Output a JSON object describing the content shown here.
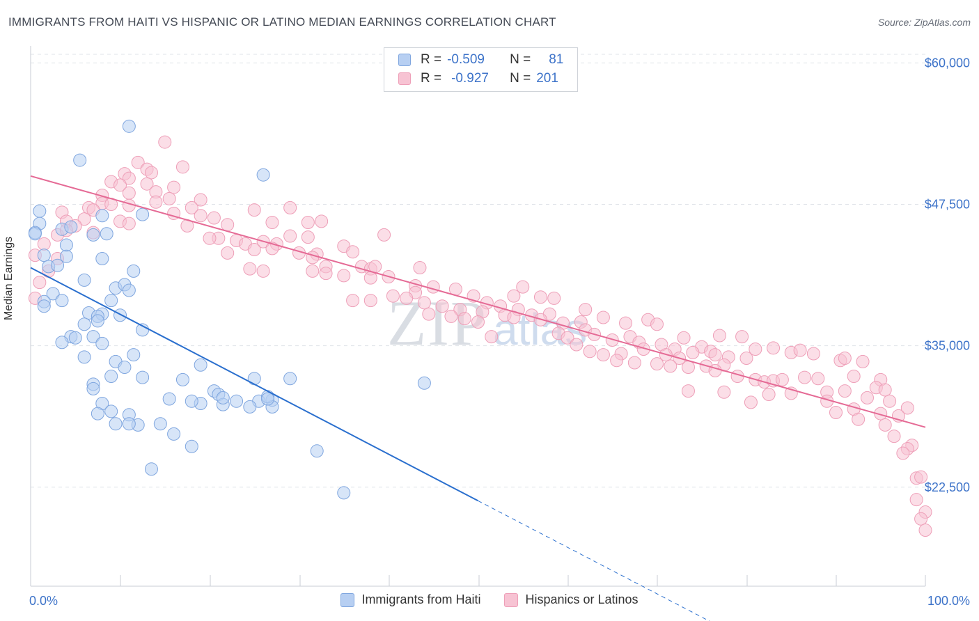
{
  "title": "IMMIGRANTS FROM HAITI VS HISPANIC OR LATINO MEDIAN EARNINGS CORRELATION CHART",
  "source": "Source: ZipAtlas.com",
  "watermark": "ZIPatlas",
  "colors": {
    "blue_fill": "#b7cff2",
    "blue_stroke": "#7fa6df",
    "blue_line": "#2a6fce",
    "pink_fill": "#f7c3d3",
    "pink_stroke": "#ee9fb8",
    "pink_line": "#e56a95",
    "value_text": "#3d73c9",
    "grid": "#dfe3e8"
  },
  "legend_top": {
    "rows": [
      {
        "r_label": "R =",
        "r_value": "-0.509",
        "n_label": "N =",
        "n_value": "81"
      },
      {
        "r_label": "R =",
        "r_value": "-0.927",
        "n_label": "N =",
        "n_value": "201"
      }
    ]
  },
  "bottom_legend": [
    "Immigrants from Haiti",
    "Hispanics or Latinos"
  ],
  "chart_data": {
    "type": "scatter",
    "xlabel": "",
    "ylabel": "Median Earnings",
    "xlim": [
      0,
      100
    ],
    "ylim": [
      13750,
      61250
    ],
    "x_ticks": [
      "0.0%",
      "100.0%"
    ],
    "y_ticks": [
      {
        "value": 22500,
        "label": "$22,500"
      },
      {
        "value": 35000,
        "label": "$35,000"
      },
      {
        "value": 47500,
        "label": "$47,500"
      },
      {
        "value": 60000,
        "label": "$60,000"
      }
    ],
    "grid": true,
    "legend_position": "top-center",
    "series": [
      {
        "name": "Immigrants from Haiti",
        "trend": {
          "x0": 0,
          "y0": 41900,
          "x1": 50,
          "y1": 21300,
          "dash_x1": 77,
          "dash_y1": 10200
        },
        "points": [
          [
            11,
            54400
          ],
          [
            5.5,
            51400
          ],
          [
            26,
            50100
          ],
          [
            1,
            46900
          ],
          [
            8,
            46500
          ],
          [
            12.5,
            46600
          ],
          [
            1,
            45800
          ],
          [
            0.5,
            45000
          ],
          [
            0.5,
            44900
          ],
          [
            3.5,
            45300
          ],
          [
            4.5,
            45500
          ],
          [
            7,
            44800
          ],
          [
            8.5,
            44900
          ],
          [
            4,
            43900
          ],
          [
            1.5,
            43000
          ],
          [
            4,
            42900
          ],
          [
            8,
            42700
          ],
          [
            2,
            42000
          ],
          [
            3,
            42100
          ],
          [
            11.5,
            41600
          ],
          [
            6,
            40800
          ],
          [
            9.5,
            40100
          ],
          [
            10.5,
            40400
          ],
          [
            11,
            39900
          ],
          [
            2.5,
            39600
          ],
          [
            3.5,
            39000
          ],
          [
            1.5,
            38900
          ],
          [
            9,
            39000
          ],
          [
            1.5,
            38500
          ],
          [
            6.5,
            37900
          ],
          [
            8,
            37800
          ],
          [
            7.5,
            37600
          ],
          [
            10,
            37700
          ],
          [
            7.5,
            37200
          ],
          [
            6,
            36900
          ],
          [
            12.5,
            36400
          ],
          [
            4.5,
            35800
          ],
          [
            7,
            35800
          ],
          [
            5,
            35700
          ],
          [
            3.5,
            35300
          ],
          [
            8,
            35200
          ],
          [
            6,
            34000
          ],
          [
            11.5,
            34200
          ],
          [
            9.5,
            33600
          ],
          [
            10.5,
            33100
          ],
          [
            19,
            33300
          ],
          [
            9,
            32300
          ],
          [
            12.5,
            32200
          ],
          [
            17,
            32000
          ],
          [
            25,
            32100
          ],
          [
            29,
            32100
          ],
          [
            7,
            31600
          ],
          [
            7,
            31200
          ],
          [
            20.5,
            31000
          ],
          [
            21,
            30700
          ],
          [
            15.5,
            30300
          ],
          [
            23,
            30100
          ],
          [
            8,
            29900
          ],
          [
            19,
            29900
          ],
          [
            25.5,
            30100
          ],
          [
            27,
            30200
          ],
          [
            21.5,
            29800
          ],
          [
            27,
            29600
          ],
          [
            7.5,
            29000
          ],
          [
            9,
            29200
          ],
          [
            11,
            28900
          ],
          [
            14.5,
            28100
          ],
          [
            12,
            28000
          ],
          [
            9.5,
            28100
          ],
          [
            11,
            28100
          ],
          [
            16,
            27200
          ],
          [
            18,
            26100
          ],
          [
            32,
            25700
          ],
          [
            13.5,
            24100
          ],
          [
            35,
            22000
          ],
          [
            44,
            31700
          ],
          [
            26.5,
            30500
          ],
          [
            21.5,
            30400
          ],
          [
            24.5,
            29600
          ],
          [
            18,
            30100
          ],
          [
            26.5,
            30300
          ]
        ]
      },
      {
        "name": "Hispanics or Latinos",
        "trend": {
          "x0": 0,
          "y0": 50000,
          "x1": 100,
          "y1": 27800
        },
        "points": [
          [
            15,
            53000
          ],
          [
            12,
            51200
          ],
          [
            17,
            50800
          ],
          [
            13,
            50600
          ],
          [
            13.5,
            50300
          ],
          [
            10.5,
            50200
          ],
          [
            11,
            49800
          ],
          [
            9,
            49500
          ],
          [
            13,
            49300
          ],
          [
            10,
            49200
          ],
          [
            16,
            49000
          ],
          [
            14,
            48600
          ],
          [
            11,
            48500
          ],
          [
            8,
            48300
          ],
          [
            15.5,
            48000
          ],
          [
            19,
            47900
          ],
          [
            14,
            47700
          ],
          [
            8,
            47600
          ],
          [
            9,
            47500
          ],
          [
            11,
            47400
          ],
          [
            18,
            47200
          ],
          [
            6.5,
            47200
          ],
          [
            7,
            47000
          ],
          [
            3.5,
            46800
          ],
          [
            16,
            46700
          ],
          [
            19,
            46500
          ],
          [
            20.5,
            46300
          ],
          [
            6,
            46200
          ],
          [
            4,
            46000
          ],
          [
            10,
            46000
          ],
          [
            11,
            45800
          ],
          [
            17.5,
            45600
          ],
          [
            22,
            45700
          ],
          [
            27,
            45900
          ],
          [
            31,
            45900
          ],
          [
            32.5,
            46000
          ],
          [
            29,
            47200
          ],
          [
            25,
            47000
          ],
          [
            5,
            45600
          ],
          [
            7,
            45000
          ],
          [
            3,
            44800
          ],
          [
            21,
            44500
          ],
          [
            20,
            44500
          ],
          [
            23,
            44300
          ],
          [
            24,
            44000
          ],
          [
            26,
            44200
          ],
          [
            27.5,
            44000
          ],
          [
            29,
            44700
          ],
          [
            31,
            44600
          ],
          [
            39.5,
            44800
          ],
          [
            35,
            43800
          ],
          [
            22,
            43200
          ],
          [
            25,
            43500
          ],
          [
            27,
            43600
          ],
          [
            30,
            43200
          ],
          [
            32,
            43100
          ],
          [
            36,
            43300
          ],
          [
            31.5,
            42800
          ],
          [
            37,
            42000
          ],
          [
            33,
            42000
          ],
          [
            38,
            41800
          ],
          [
            38.5,
            42000
          ],
          [
            24.5,
            41800
          ],
          [
            26,
            41600
          ],
          [
            31.5,
            41600
          ],
          [
            33,
            41400
          ],
          [
            43.5,
            41900
          ],
          [
            35,
            41200
          ],
          [
            38,
            41000
          ],
          [
            40,
            41100
          ],
          [
            43,
            40300
          ],
          [
            45,
            40200
          ],
          [
            47.5,
            40000
          ],
          [
            43,
            39700
          ],
          [
            40.5,
            39400
          ],
          [
            42,
            39200
          ],
          [
            38,
            39000
          ],
          [
            36,
            39000
          ],
          [
            49.5,
            39400
          ],
          [
            51,
            38800
          ],
          [
            54,
            39400
          ],
          [
            55,
            40200
          ],
          [
            57,
            39300
          ],
          [
            58.5,
            39200
          ],
          [
            44,
            38800
          ],
          [
            46,
            38500
          ],
          [
            48,
            38200
          ],
          [
            50.5,
            38000
          ],
          [
            52.5,
            38500
          ],
          [
            54.5,
            38200
          ],
          [
            56,
            37700
          ],
          [
            58,
            37800
          ],
          [
            62,
            38200
          ],
          [
            44.5,
            37800
          ],
          [
            47,
            37600
          ],
          [
            48.5,
            37400
          ],
          [
            50,
            37100
          ],
          [
            53,
            37700
          ],
          [
            54,
            37500
          ],
          [
            57,
            37300
          ],
          [
            59.5,
            37000
          ],
          [
            61.5,
            37100
          ],
          [
            64,
            37500
          ],
          [
            66.5,
            37000
          ],
          [
            69,
            37300
          ],
          [
            70,
            36900
          ],
          [
            59,
            36100
          ],
          [
            62,
            36400
          ],
          [
            63,
            36000
          ],
          [
            65,
            35500
          ],
          [
            67,
            35800
          ],
          [
            68,
            35300
          ],
          [
            51.5,
            35800
          ],
          [
            60,
            35700
          ],
          [
            61,
            35100
          ],
          [
            62.5,
            34500
          ],
          [
            64,
            34200
          ],
          [
            66,
            34300
          ],
          [
            68.5,
            34700
          ],
          [
            70.5,
            35100
          ],
          [
            73,
            35700
          ],
          [
            75,
            34900
          ],
          [
            76,
            34500
          ],
          [
            77,
            35900
          ],
          [
            79.5,
            35800
          ],
          [
            81,
            34700
          ],
          [
            72,
            34700
          ],
          [
            74,
            34400
          ],
          [
            76.5,
            34200
          ],
          [
            78,
            34000
          ],
          [
            71,
            34200
          ],
          [
            72.5,
            33900
          ],
          [
            65.5,
            33700
          ],
          [
            67.5,
            33500
          ],
          [
            71.5,
            33200
          ],
          [
            70,
            33400
          ],
          [
            73.5,
            33100
          ],
          [
            75.5,
            33200
          ],
          [
            77.5,
            33300
          ],
          [
            80,
            33900
          ],
          [
            83,
            34800
          ],
          [
            85,
            34400
          ],
          [
            86,
            34600
          ],
          [
            87.5,
            34300
          ],
          [
            90.5,
            33700
          ],
          [
            93,
            33600
          ],
          [
            91,
            33900
          ],
          [
            76.5,
            32800
          ],
          [
            79,
            32300
          ],
          [
            81,
            32000
          ],
          [
            82,
            31800
          ],
          [
            83,
            31900
          ],
          [
            84,
            32000
          ],
          [
            86.5,
            32200
          ],
          [
            88,
            32100
          ],
          [
            92,
            32300
          ],
          [
            95,
            32000
          ],
          [
            94.5,
            31300
          ],
          [
            95.5,
            31100
          ],
          [
            91,
            31000
          ],
          [
            89,
            30900
          ],
          [
            85,
            30800
          ],
          [
            80.5,
            30000
          ],
          [
            73.5,
            31000
          ],
          [
            77.5,
            30900
          ],
          [
            82.5,
            30700
          ],
          [
            93.5,
            30400
          ],
          [
            96,
            30100
          ],
          [
            98,
            29500
          ],
          [
            92,
            29400
          ],
          [
            90,
            29100
          ],
          [
            95,
            29000
          ],
          [
            97,
            28800
          ],
          [
            92.5,
            28500
          ],
          [
            95.5,
            28000
          ],
          [
            89,
            30100
          ],
          [
            96.5,
            27000
          ],
          [
            98.5,
            26200
          ],
          [
            98,
            25900
          ],
          [
            97.5,
            25500
          ],
          [
            99,
            23300
          ],
          [
            99.5,
            23400
          ],
          [
            99,
            21400
          ],
          [
            100,
            20300
          ],
          [
            99.5,
            19700
          ],
          [
            100,
            18700
          ],
          [
            0.5,
            39200
          ],
          [
            1,
            40600
          ],
          [
            2,
            41600
          ],
          [
            0.5,
            43000
          ],
          [
            4,
            45200
          ],
          [
            1.5,
            44000
          ],
          [
            3,
            42700
          ]
        ]
      }
    ]
  }
}
